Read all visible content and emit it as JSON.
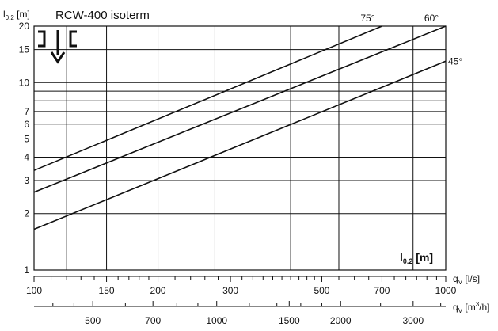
{
  "chart_data": {
    "type": "line",
    "title": "RCW-400 isoterm",
    "ylabel": {
      "main": "l",
      "sub": "0.2",
      "unit": " [m]"
    },
    "inner_label": {
      "main": "l",
      "sub": "0.2",
      "unit": " [m]"
    },
    "x_scale": "log",
    "y_scale": "log",
    "xlim": [
      100,
      1000
    ],
    "ylim": [
      1,
      20
    ],
    "axis_primary": {
      "label_prefix": "q",
      "label_sub": "V",
      "label_unit": " [l/s]",
      "ticks": [
        100,
        150,
        200,
        300,
        500,
        700,
        1000
      ],
      "tick_labels": [
        "100",
        "150",
        "200",
        "300",
        "500",
        "700",
        "1000"
      ]
    },
    "axis_secondary": {
      "label_prefix": "q",
      "label_sub": "V",
      "label_unit_pre": " [m",
      "label_unit_sup": "3",
      "label_unit_post": "/h]",
      "ticks_m3h": [
        500,
        700,
        1000,
        1500,
        2000,
        3000
      ],
      "tick_labels": [
        "500",
        "700",
        "1000",
        "1500",
        "2000",
        "3000"
      ]
    },
    "y_ticks": [
      1,
      2,
      3,
      4,
      5,
      6,
      7,
      10,
      15,
      20
    ],
    "y_tick_labels": [
      "1",
      "2",
      "3",
      "4",
      "5",
      "6",
      "7",
      "10",
      "15",
      "20"
    ],
    "series": [
      {
        "name": "75°",
        "points": [
          [
            100,
            3.4
          ],
          [
            700,
            20
          ]
        ]
      },
      {
        "name": "60°",
        "points": [
          [
            100,
            2.6
          ],
          [
            1000,
            20
          ]
        ]
      },
      {
        "name": "45°",
        "points": [
          [
            100,
            1.65
          ],
          [
            1000,
            13
          ]
        ]
      }
    ],
    "grid": true
  }
}
